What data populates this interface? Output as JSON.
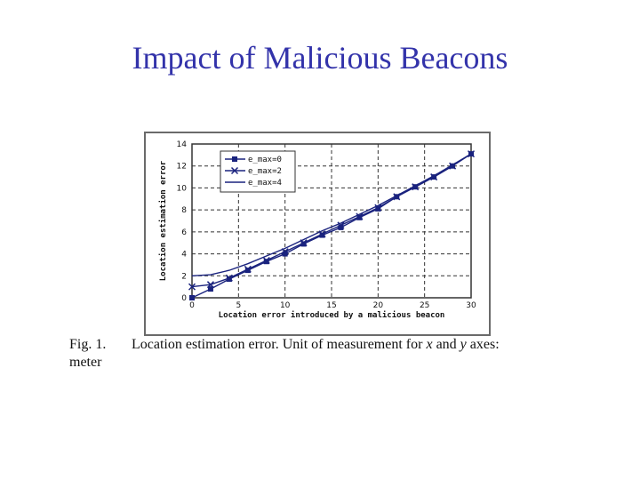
{
  "slide": {
    "title": "Impact of Malicious Beacons"
  },
  "caption": {
    "fig_number": "Fig. 1.",
    "text_before_x": "Location estimation error. Unit of measurement for",
    "x_symbol": "x",
    "and_word": "and",
    "y_symbol": "y",
    "text_after_y": "axes:",
    "line2": "meter"
  },
  "colors": {
    "title": "#3333aa",
    "series": "#1a237e",
    "grid": "#333333"
  },
  "chart_data": {
    "type": "line",
    "title": "",
    "xlabel": "Location error introduced by a malicious beacon",
    "ylabel": "Location estimation error",
    "xlim": [
      0,
      30
    ],
    "ylim": [
      0,
      14
    ],
    "xticks": [
      0,
      5,
      10,
      15,
      20,
      25,
      30
    ],
    "yticks": [
      0,
      2,
      4,
      6,
      8,
      10,
      12,
      14
    ],
    "grid": true,
    "legend_position": "top-left",
    "series": [
      {
        "name": "e_max=0",
        "marker": "square",
        "x": [
          0,
          2,
          4,
          6,
          8,
          10,
          12,
          14,
          16,
          18,
          20,
          22,
          24,
          26,
          28,
          30
        ],
        "y": [
          0.0,
          0.8,
          1.7,
          2.5,
          3.3,
          4.0,
          4.9,
          5.7,
          6.4,
          7.3,
          8.1,
          9.2,
          10.1,
          11.0,
          12.0,
          13.1
        ]
      },
      {
        "name": "e_max=2",
        "marker": "x",
        "x": [
          0,
          2,
          4,
          6,
          8,
          10,
          12,
          14,
          16,
          18,
          20,
          22,
          24,
          26,
          28,
          30
        ],
        "y": [
          1.0,
          1.2,
          1.8,
          2.6,
          3.4,
          4.2,
          5.0,
          5.8,
          6.6,
          7.4,
          8.2,
          9.2,
          10.1,
          11.0,
          12.0,
          13.1
        ]
      },
      {
        "name": "e_max=4",
        "marker": "none",
        "x": [
          0,
          2,
          4,
          6,
          8,
          10,
          12,
          14,
          16,
          18,
          20,
          22,
          24,
          26,
          28,
          30
        ],
        "y": [
          2.0,
          2.1,
          2.5,
          3.1,
          3.8,
          4.5,
          5.3,
          6.1,
          6.8,
          7.6,
          8.4,
          9.3,
          10.2,
          11.1,
          12.1,
          13.1
        ]
      }
    ]
  }
}
